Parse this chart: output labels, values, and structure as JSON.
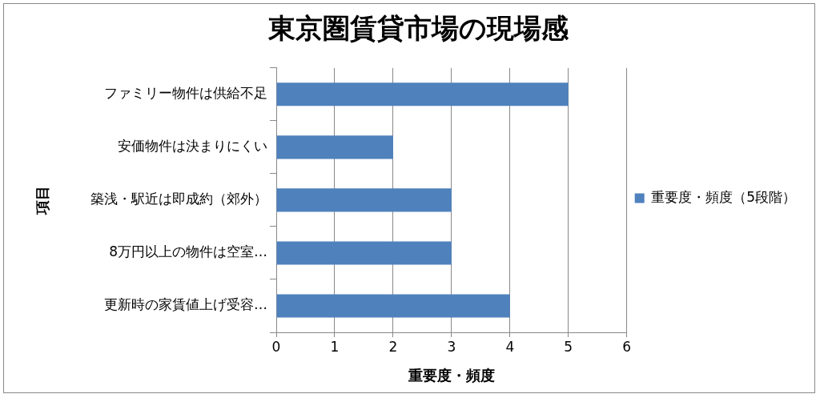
{
  "chart_data": {
    "type": "bar",
    "orientation": "horizontal",
    "title": "東京圏賃貸市場の現場感",
    "xlabel": "重要度・頻度",
    "ylabel": "項目",
    "categories": [
      "ファミリー物件は供給不足",
      "安価物件は決まりにくい",
      "築浅・駅近は即成約（郊外）",
      "8万円以上の物件は空室…",
      "更新時の家賃値上げ受容…"
    ],
    "series": [
      {
        "name": "重要度・頻度（5段階）",
        "color": "#4f81bd",
        "values": [
          5,
          2,
          3,
          3,
          4
        ]
      }
    ],
    "xlim": [
      0,
      6
    ],
    "xticks": [
      0,
      1,
      2,
      3,
      4,
      5,
      6
    ],
    "grid": "x",
    "legend": "right"
  }
}
